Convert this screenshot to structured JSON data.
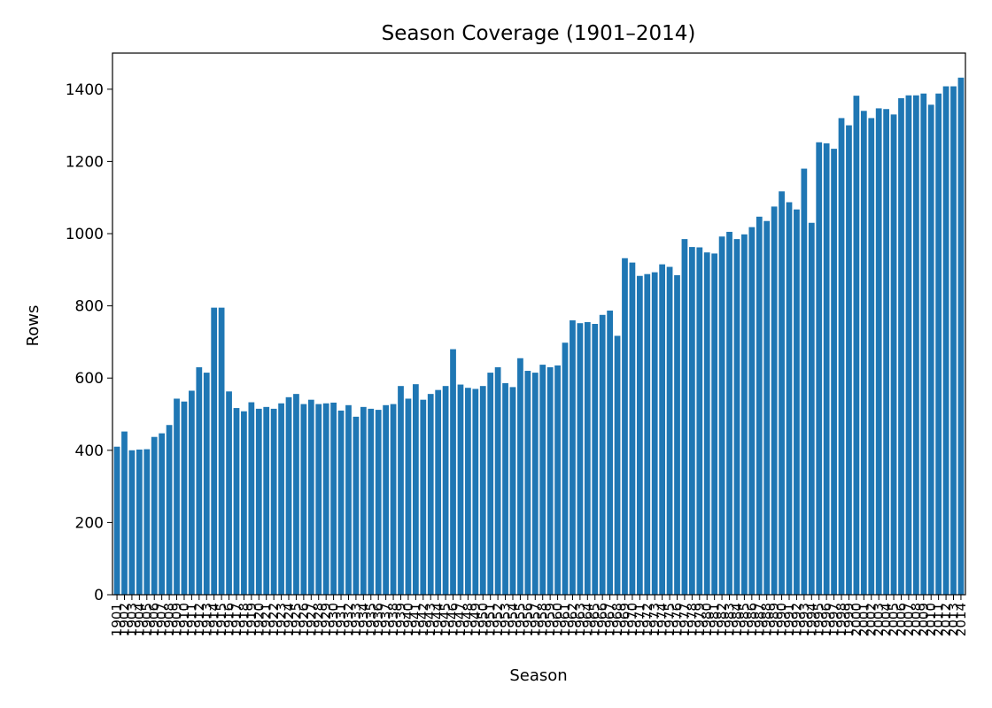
{
  "chart_data": {
    "type": "bar",
    "title": "Season Coverage (1901–2014)",
    "xlabel": "Season",
    "ylabel": "Rows",
    "ylim": [
      0,
      1500
    ],
    "yticks": [
      0,
      200,
      400,
      600,
      800,
      1000,
      1200,
      1400
    ],
    "grid": false,
    "bar_color": "#1f77b4",
    "categories": [
      "1901",
      "1902",
      "1903",
      "1904",
      "1905",
      "1906",
      "1907",
      "1908",
      "1909",
      "1910",
      "1911",
      "1912",
      "1913",
      "1914",
      "1915",
      "1916",
      "1917",
      "1918",
      "1919",
      "1920",
      "1921",
      "1922",
      "1923",
      "1924",
      "1925",
      "1926",
      "1927",
      "1928",
      "1929",
      "1930",
      "1931",
      "1932",
      "1933",
      "1934",
      "1935",
      "1936",
      "1937",
      "1938",
      "1939",
      "1940",
      "1941",
      "1942",
      "1943",
      "1944",
      "1945",
      "1946",
      "1947",
      "1948",
      "1949",
      "1950",
      "1951",
      "1952",
      "1953",
      "1954",
      "1955",
      "1956",
      "1957",
      "1958",
      "1959",
      "1960",
      "1961",
      "1962",
      "1963",
      "1964",
      "1965",
      "1966",
      "1967",
      "1968",
      "1969",
      "1970",
      "1971",
      "1972",
      "1973",
      "1974",
      "1975",
      "1976",
      "1977",
      "1978",
      "1979",
      "1980",
      "1981",
      "1982",
      "1983",
      "1984",
      "1985",
      "1986",
      "1987",
      "1988",
      "1989",
      "1990",
      "1991",
      "1992",
      "1993",
      "1994",
      "1995",
      "1996",
      "1997",
      "1998",
      "1999",
      "2000",
      "2001",
      "2002",
      "2003",
      "2004",
      "2005",
      "2006",
      "2007",
      "2008",
      "2009",
      "2010",
      "2011",
      "2012",
      "2013",
      "2014"
    ],
    "values": [
      410,
      452,
      400,
      402,
      403,
      437,
      447,
      470,
      543,
      535,
      565,
      630,
      615,
      795,
      795,
      563,
      517,
      508,
      533,
      515,
      520,
      515,
      530,
      547,
      556,
      528,
      540,
      528,
      530,
      532,
      510,
      525,
      493,
      520,
      515,
      512,
      525,
      528,
      578,
      543,
      583,
      540,
      556,
      567,
      578,
      680,
      582,
      573,
      570,
      578,
      615,
      630,
      586,
      575,
      655,
      620,
      615,
      637,
      630,
      635,
      698,
      760,
      752,
      755,
      750,
      775,
      787,
      717,
      932,
      920,
      883,
      888,
      893,
      915,
      908,
      885,
      985,
      963,
      962,
      948,
      945,
      992,
      1005,
      985,
      998,
      1018,
      1047,
      1035,
      1075,
      1117,
      1087,
      1067,
      1180,
      1030,
      1253,
      1250,
      1235,
      1320,
      1300,
      1382,
      1340,
      1320,
      1347,
      1345,
      1330,
      1375,
      1383,
      1383,
      1388,
      1357,
      1388,
      1408,
      1408,
      1432
    ]
  }
}
